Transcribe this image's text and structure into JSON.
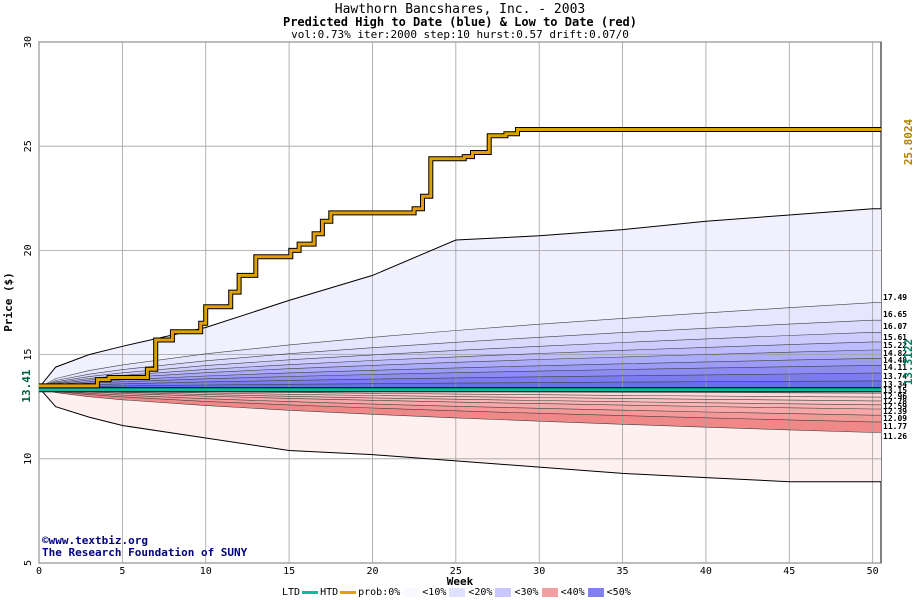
{
  "title": "Hawthorn Bancshares, Inc. - 2003",
  "subtitle": "Predicted High to Date (blue) &  Low to Date (red)",
  "params": "vol:0.73% iter:2000 step:10 hurst:0.57 drift:0.07/0",
  "credit_line1": "©www.textbiz.org",
  "credit_line2": "The Research Foundation of SUNY",
  "legend": {
    "ltd": "LTD",
    "htd": "HTD",
    "prob": "prob:0%",
    "p10": "<10%",
    "p20": "<20%",
    "p30": "<30%",
    "p40": "<40%",
    "p50": "<50%"
  },
  "colors": {
    "ltd": "#00c0a0",
    "htd": "#e0a000",
    "band_high": [
      "#f0f0ff",
      "#d8d8ff",
      "#b8b8ff",
      "#9898f8",
      "#7878f0"
    ],
    "band_low": [
      "#fff0f0",
      "#ffd8d8",
      "#ffb8b8",
      "#f89898",
      "#f07878"
    ]
  },
  "chart_data": {
    "type": "area",
    "xlabel": "Week",
    "ylabel": "Price ($)",
    "xlim": [
      0,
      50.5
    ],
    "ylim": [
      5,
      30
    ],
    "xticks": [
      0,
      5,
      10,
      15,
      20,
      25,
      30,
      35,
      40,
      45,
      50
    ],
    "yticks": [
      5,
      10,
      15,
      20,
      25,
      30
    ],
    "grid": true,
    "start_price": 13.41,
    "start_label": "13.41",
    "htd_label": "25.8024",
    "ltd_label": "13.3122",
    "htd_final": 25.8024,
    "ltd_final": 13.3122,
    "htd_path": {
      "x": [
        0,
        3.5,
        3.5,
        4.2,
        4.2,
        6.5,
        6.5,
        7,
        7,
        8,
        8,
        9.7,
        9.7,
        10,
        10,
        11.5,
        11.5,
        12,
        12,
        13,
        13,
        15.1,
        15.1,
        15.6,
        15.6,
        16.5,
        16.5,
        17,
        17,
        17.5,
        17.5,
        22.5,
        22.5,
        23,
        23,
        23.5,
        23.5,
        25.5,
        25.5,
        26,
        26,
        27,
        27,
        28,
        28,
        28.7,
        28.7,
        50.5
      ],
      "y": [
        13.5,
        13.5,
        13.8,
        13.8,
        13.9,
        13.9,
        14.3,
        14.3,
        15.7,
        15.7,
        16.1,
        16.1,
        16.5,
        16.5,
        17.3,
        17.3,
        18.0,
        18.0,
        18.8,
        18.8,
        19.7,
        19.7,
        20.0,
        20.0,
        20.3,
        20.3,
        20.8,
        20.8,
        21.4,
        21.4,
        21.8,
        21.8,
        22.0,
        22.0,
        22.6,
        22.6,
        24.4,
        24.4,
        24.5,
        24.5,
        24.7,
        24.7,
        25.5,
        25.5,
        25.6,
        25.6,
        25.8,
        25.8
      ]
    },
    "ltd_path": {
      "x": [
        0,
        50.5
      ],
      "y": [
        13.3122,
        13.3122
      ]
    },
    "envelope": {
      "x": [
        0,
        1,
        3,
        5,
        10,
        15,
        20,
        25,
        30,
        35,
        40,
        45,
        50
      ],
      "upper": [
        13.41,
        14.4,
        15.0,
        15.4,
        16.3,
        17.6,
        18.8,
        20.5,
        20.7,
        21.0,
        21.4,
        21.7,
        22.0
      ],
      "lower": [
        13.41,
        12.5,
        12.0,
        11.6,
        11.0,
        10.4,
        10.2,
        9.9,
        9.6,
        9.3,
        9.1,
        8.9,
        8.9
      ]
    },
    "high_quantiles": {
      "labels": [
        "17.49",
        "16.65",
        "16.07",
        "15.61",
        "15.22",
        "14.82",
        "14.48",
        "14.11",
        "13.74"
      ],
      "final": [
        17.49,
        16.65,
        16.07,
        15.61,
        15.22,
        14.82,
        14.48,
        14.11,
        13.74
      ]
    },
    "low_quantiles": {
      "labels": [
        "13.34",
        "13.15",
        "12.96",
        "12.78",
        "12.59",
        "12.39",
        "12.09",
        "11.77",
        "11.26"
      ],
      "final": [
        13.34,
        13.15,
        12.96,
        12.78,
        12.59,
        12.39,
        12.09,
        11.77,
        11.26
      ]
    }
  }
}
